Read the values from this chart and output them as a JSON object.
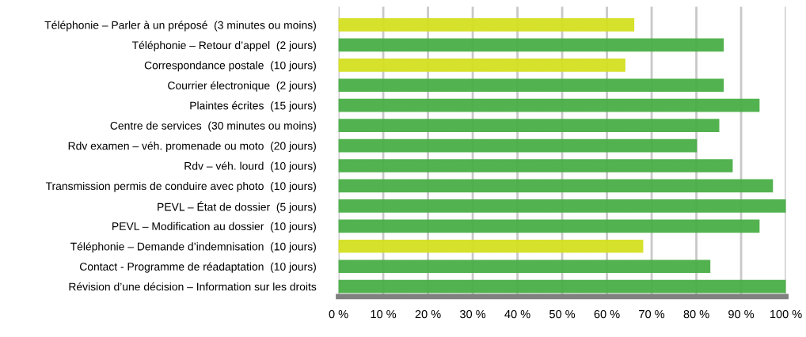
{
  "chart_data": {
    "type": "bar",
    "orientation": "horizontal",
    "categories": [
      "Téléphonie – Parler à un préposé  (3 minutes ou moins)",
      "Téléphonie – Retour d’appel  (2 jours)",
      "Correspondance postale  (10 jours)",
      "Courrier électronique  (2 jours)",
      "Plaintes écrites  (15 jours)",
      "Centre de services  (30 minutes ou moins)",
      "Rdv examen – véh. promenade ou moto  (20 jours)",
      "Rdv – véh. lourd  (10 jours)",
      "Transmission permis de conduire avec photo  (10 jours)",
      "PEVL – État de dossier  (5 jours)",
      "PEVL – Modification au dossier  (10 jours)",
      "Téléphonie – Demande d’indemnisation  (10 jours)",
      "Contact - Programme de réadaptation  (10 jours)",
      "Révision d’une décision – Information sur les droits"
    ],
    "values": [
      66,
      86,
      64,
      86,
      94,
      85,
      80,
      88,
      97,
      100,
      94,
      68,
      83,
      100
    ],
    "colors": [
      "#d4e021",
      "#4aae47",
      "#d4e021",
      "#4aae47",
      "#4aae47",
      "#4aae47",
      "#4aae47",
      "#4aae47",
      "#4aae47",
      "#4aae47",
      "#4aae47",
      "#d4e021",
      "#4aae47",
      "#4aae47"
    ],
    "xlim": [
      0,
      100
    ],
    "xticks": [
      {
        "value": 0,
        "label": "0 %"
      },
      {
        "value": 10,
        "label": "10 %"
      },
      {
        "value": 20,
        "label": "20 %"
      },
      {
        "value": 30,
        "label": "30 %"
      },
      {
        "value": 40,
        "label": "40 %"
      },
      {
        "value": 50,
        "label": "50 %"
      },
      {
        "value": 60,
        "label": "60 %"
      },
      {
        "value": 70,
        "label": "70 %"
      },
      {
        "value": 80,
        "label": "80 %"
      },
      {
        "value": 90,
        "label": "90 %"
      },
      {
        "value": 100,
        "label": "100 %"
      }
    ],
    "grid": "x",
    "legend": false
  }
}
